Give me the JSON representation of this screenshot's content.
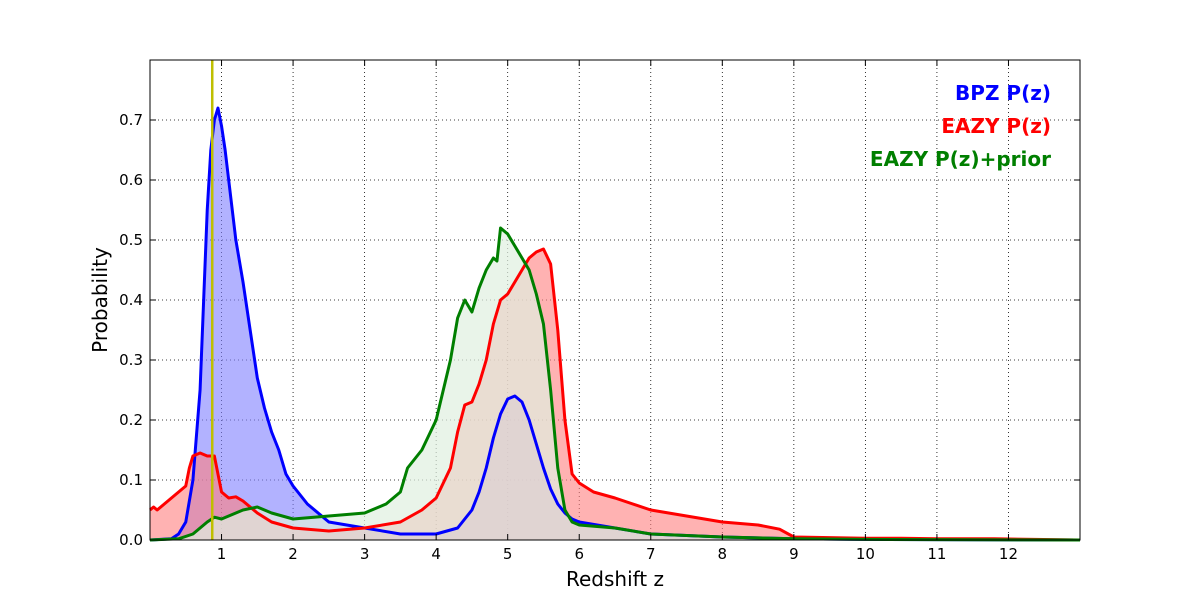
{
  "chart_data": {
    "type": "area",
    "xlabel": "Redshift z",
    "ylabel": "Probability",
    "xlim": [
      0,
      13
    ],
    "ylim": [
      0,
      0.8
    ],
    "xticks": [
      1,
      2,
      3,
      4,
      5,
      6,
      7,
      8,
      9,
      10,
      11,
      12
    ],
    "yticks": [
      0.0,
      0.1,
      0.2,
      0.3,
      0.4,
      0.5,
      0.6,
      0.7
    ],
    "grid": true,
    "legend_placement": "top-right",
    "vline": {
      "x": 0.87,
      "color": "#bfbf00"
    },
    "series": [
      {
        "name": "BPZ P(z)",
        "color": "#0000ff",
        "fill": "#7f7fff",
        "x": [
          0,
          0.3,
          0.4,
          0.5,
          0.6,
          0.7,
          0.75,
          0.8,
          0.85,
          0.9,
          0.95,
          1.0,
          1.05,
          1.1,
          1.2,
          1.3,
          1.4,
          1.5,
          1.6,
          1.7,
          1.8,
          1.9,
          2.0,
          2.2,
          2.5,
          3.0,
          3.5,
          4.0,
          4.3,
          4.5,
          4.6,
          4.7,
          4.8,
          4.9,
          5.0,
          5.1,
          5.2,
          5.3,
          5.4,
          5.5,
          5.6,
          5.7,
          5.8,
          5.9,
          6.0,
          6.5,
          7.0,
          8.0,
          9.0,
          10.0,
          13.0
        ],
        "values": [
          0,
          0.002,
          0.01,
          0.03,
          0.1,
          0.25,
          0.4,
          0.55,
          0.65,
          0.7,
          0.72,
          0.69,
          0.65,
          0.6,
          0.5,
          0.43,
          0.35,
          0.27,
          0.22,
          0.18,
          0.15,
          0.11,
          0.09,
          0.06,
          0.03,
          0.02,
          0.01,
          0.01,
          0.02,
          0.05,
          0.08,
          0.12,
          0.17,
          0.21,
          0.235,
          0.24,
          0.23,
          0.2,
          0.16,
          0.12,
          0.085,
          0.06,
          0.045,
          0.035,
          0.03,
          0.02,
          0.01,
          0.005,
          0.002,
          0.001,
          0
        ]
      },
      {
        "name": "EAZY P(z)",
        "color": "#ff0000",
        "fill": "#ff7f7f",
        "x": [
          0,
          0.05,
          0.1,
          0.2,
          0.3,
          0.4,
          0.5,
          0.55,
          0.6,
          0.7,
          0.8,
          0.9,
          1.0,
          1.1,
          1.2,
          1.3,
          1.5,
          1.7,
          2.0,
          2.5,
          3.0,
          3.5,
          3.8,
          4.0,
          4.2,
          4.3,
          4.4,
          4.5,
          4.6,
          4.7,
          4.8,
          4.9,
          5.0,
          5.1,
          5.2,
          5.3,
          5.4,
          5.5,
          5.6,
          5.7,
          5.8,
          5.9,
          6.0,
          6.2,
          6.5,
          7.0,
          7.5,
          8.0,
          8.5,
          8.8,
          9.0,
          9.5,
          10.0,
          10.5,
          11.0,
          11.5,
          11.8,
          13.0
        ],
        "values": [
          0.05,
          0.055,
          0.05,
          0.06,
          0.07,
          0.08,
          0.09,
          0.12,
          0.14,
          0.145,
          0.14,
          0.14,
          0.08,
          0.07,
          0.072,
          0.065,
          0.045,
          0.03,
          0.02,
          0.015,
          0.02,
          0.03,
          0.05,
          0.07,
          0.12,
          0.18,
          0.225,
          0.23,
          0.26,
          0.3,
          0.36,
          0.4,
          0.41,
          0.43,
          0.45,
          0.47,
          0.48,
          0.485,
          0.46,
          0.35,
          0.2,
          0.11,
          0.095,
          0.08,
          0.07,
          0.05,
          0.04,
          0.03,
          0.025,
          0.018,
          0.005,
          0.004,
          0.003,
          0.003,
          0.002,
          0.002,
          0.002,
          0
        ]
      },
      {
        "name": "EAZY P(z)+prior",
        "color": "#007f00",
        "fill": "#e0f0e0",
        "x": [
          0,
          0.4,
          0.6,
          0.8,
          0.9,
          1.0,
          1.1,
          1.2,
          1.3,
          1.5,
          1.7,
          2.0,
          2.5,
          3.0,
          3.3,
          3.5,
          3.6,
          3.8,
          4.0,
          4.2,
          4.3,
          4.4,
          4.5,
          4.6,
          4.7,
          4.8,
          4.85,
          4.9,
          5.0,
          5.1,
          5.2,
          5.3,
          5.4,
          5.5,
          5.6,
          5.7,
          5.8,
          5.9,
          6.0,
          6.5,
          7.0,
          8.0,
          9.0,
          10.0,
          13.0
        ],
        "values": [
          0,
          0.002,
          0.01,
          0.03,
          0.038,
          0.035,
          0.04,
          0.045,
          0.05,
          0.055,
          0.045,
          0.035,
          0.04,
          0.045,
          0.06,
          0.08,
          0.12,
          0.15,
          0.2,
          0.3,
          0.37,
          0.4,
          0.38,
          0.42,
          0.45,
          0.47,
          0.465,
          0.52,
          0.51,
          0.49,
          0.47,
          0.45,
          0.41,
          0.36,
          0.25,
          0.12,
          0.05,
          0.03,
          0.025,
          0.02,
          0.01,
          0.005,
          0.002,
          0.001,
          0
        ]
      }
    ]
  }
}
